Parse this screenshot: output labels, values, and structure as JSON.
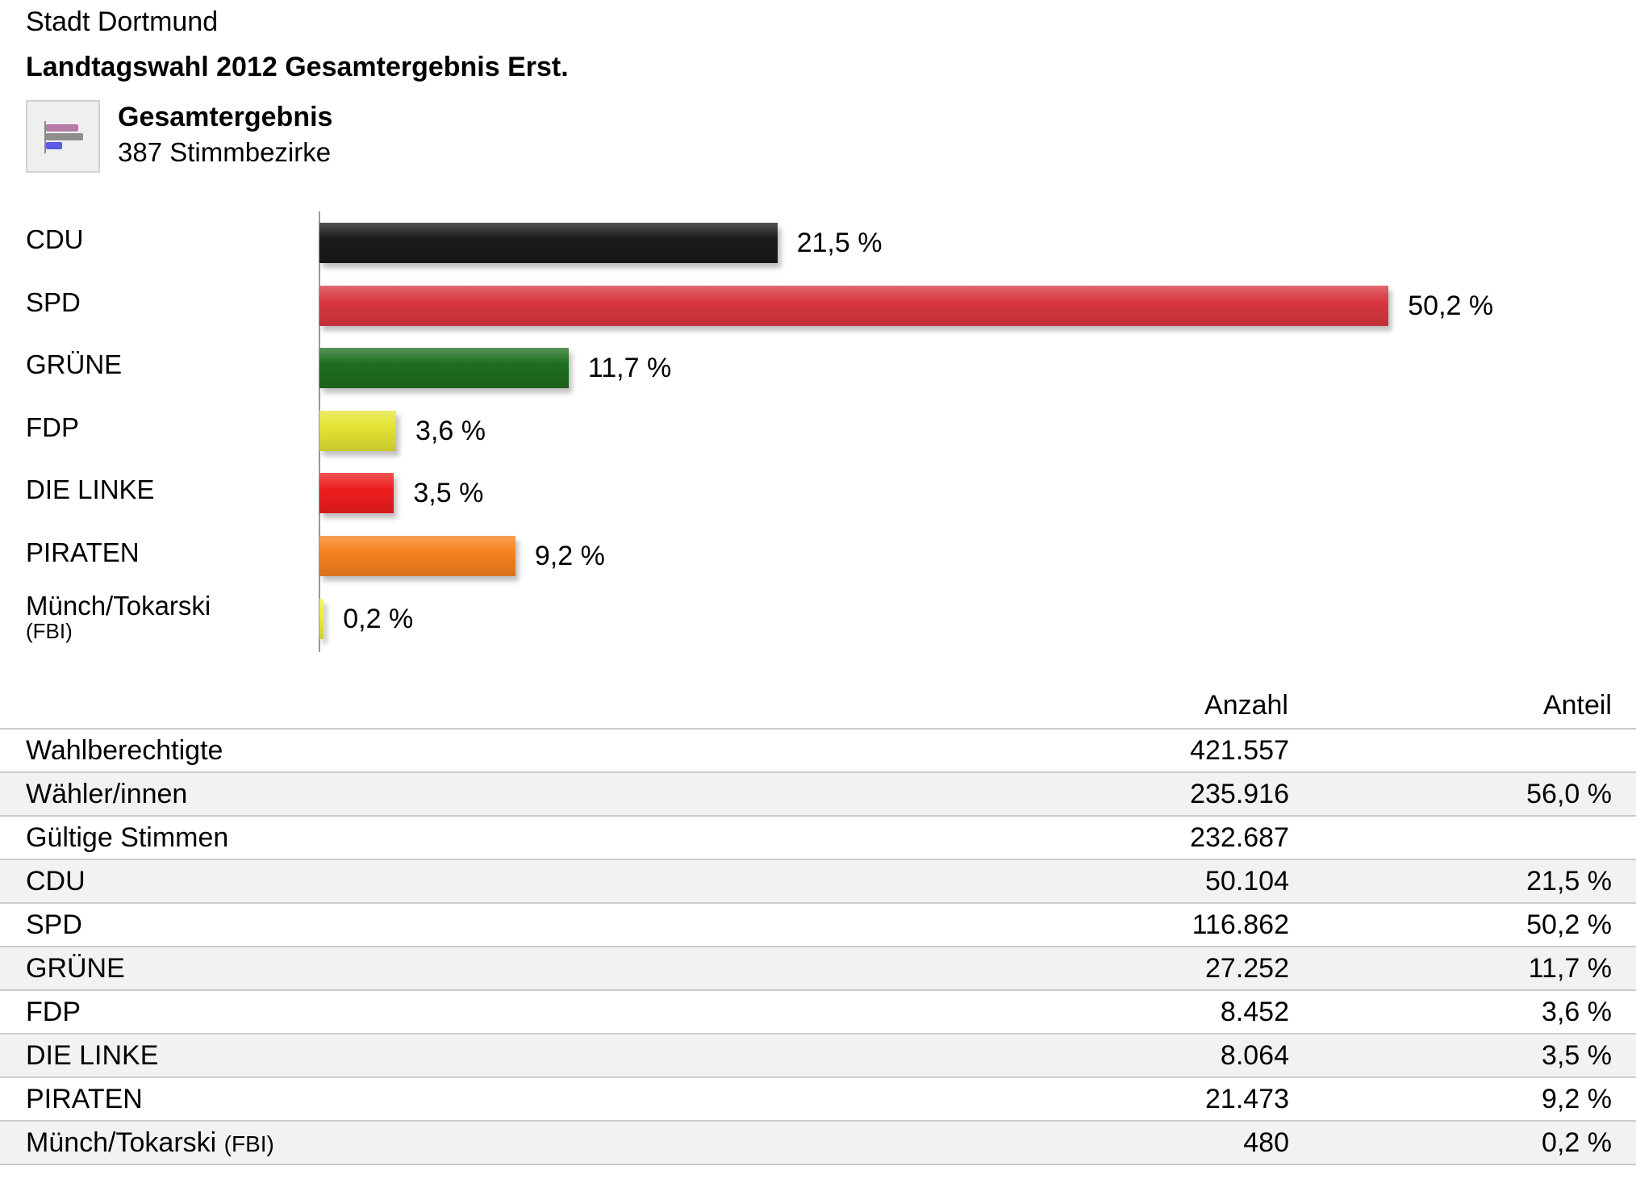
{
  "header": {
    "city": "Stadt Dortmund",
    "title": "Landtagswahl 2012 Gesamtergebnis Erst.",
    "subtitle": "Gesamtergebnis",
    "districts": "387 Stimmbezirke",
    "icon": "bar-chart-icon"
  },
  "chart_data": {
    "type": "bar",
    "orientation": "horizontal",
    "categories": [
      "CDU",
      "SPD",
      "GRÜNE",
      "FDP",
      "DIE LINKE",
      "PIRATEN",
      "Münch/Tokarski"
    ],
    "category_notes": [
      "",
      "",
      "",
      "",
      "",
      "",
      "(FBI)"
    ],
    "values": [
      21.5,
      50.2,
      11.7,
      3.6,
      3.5,
      9.2,
      0.2
    ],
    "value_labels": [
      "21,5 %",
      "50,2 %",
      "11,7 %",
      "3,6 %",
      "3,5 %",
      "9,2 %",
      "0,2 %"
    ],
    "colors": [
      "#1a1a1a",
      "#d9363e",
      "#1f6e1f",
      "#e3e333",
      "#ee1d1d",
      "#f5821f",
      "#eded3a"
    ],
    "unit": "%",
    "title": "Gesamtergebnis",
    "xlabel": "",
    "ylabel": ""
  },
  "table": {
    "headers": [
      "",
      "Anzahl",
      "Anteil"
    ],
    "rows": [
      {
        "label": "Wahlberechtigte",
        "note": "",
        "count": "421.557",
        "share": ""
      },
      {
        "label": "Wähler/innen",
        "note": "",
        "count": "235.916",
        "share": "56,0 %"
      },
      {
        "label": "Gültige Stimmen",
        "note": "",
        "count": "232.687",
        "share": ""
      },
      {
        "label": "CDU",
        "note": "",
        "count": "50.104",
        "share": "21,5 %"
      },
      {
        "label": "SPD",
        "note": "",
        "count": "116.862",
        "share": "50,2 %"
      },
      {
        "label": "GRÜNE",
        "note": "",
        "count": "27.252",
        "share": "11,7 %"
      },
      {
        "label": "FDP",
        "note": "",
        "count": "8.452",
        "share": "3,6 %"
      },
      {
        "label": "DIE LINKE",
        "note": "",
        "count": "8.064",
        "share": "3,5 %"
      },
      {
        "label": "PIRATEN",
        "note": "",
        "count": "21.473",
        "share": "9,2 %"
      },
      {
        "label": "Münch/Tokarski",
        "note": "(FBI)",
        "count": "480",
        "share": "0,2 %"
      }
    ]
  }
}
